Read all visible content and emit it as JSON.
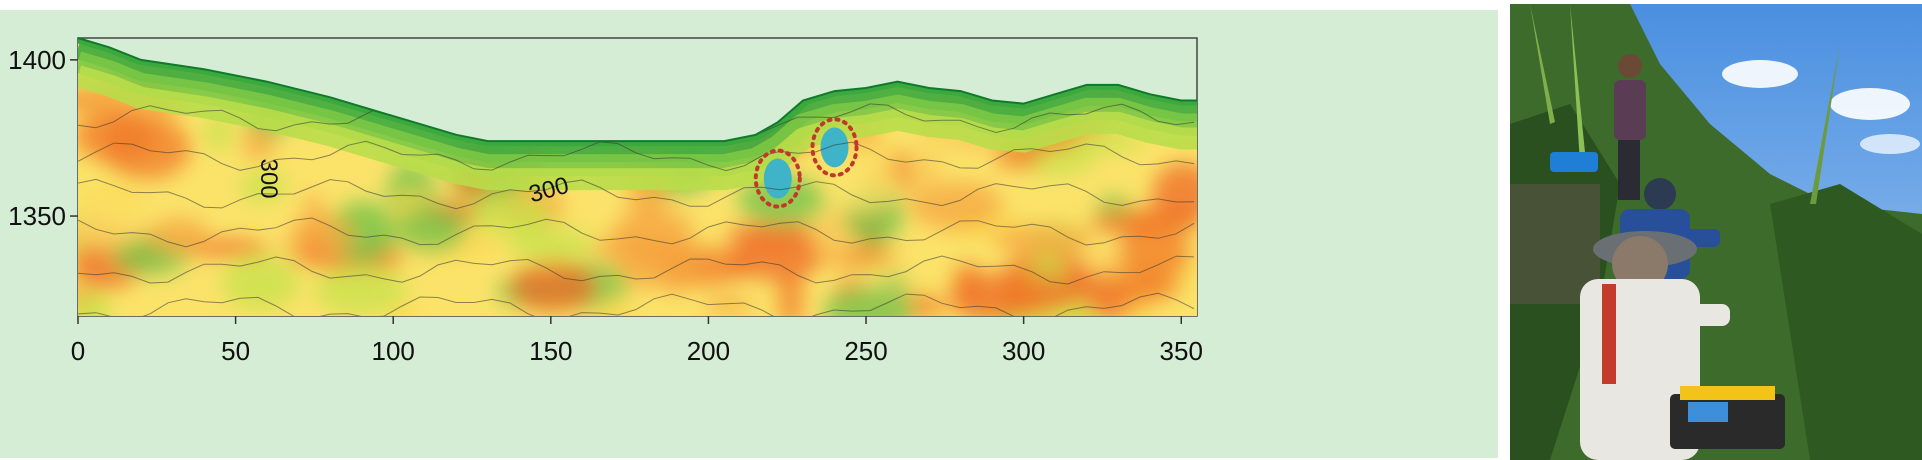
{
  "chart_data": {
    "type": "heatmap",
    "title": "",
    "xlabel": "",
    "ylabel": "",
    "xlim": [
      0,
      355
    ],
    "ylim": [
      1318,
      1407
    ],
    "x_ticks": [
      0,
      50,
      100,
      150,
      200,
      250,
      300,
      350
    ],
    "y_ticks": [
      1350,
      1400
    ],
    "surface_profile": [
      [
        0,
        1407
      ],
      [
        10,
        1404
      ],
      [
        20,
        1400
      ],
      [
        40,
        1397
      ],
      [
        60,
        1393
      ],
      [
        80,
        1388
      ],
      [
        100,
        1382
      ],
      [
        120,
        1376
      ],
      [
        130,
        1374
      ],
      [
        150,
        1374
      ],
      [
        170,
        1374
      ],
      [
        190,
        1374
      ],
      [
        205,
        1374
      ],
      [
        215,
        1376
      ],
      [
        222,
        1380
      ],
      [
        230,
        1387
      ],
      [
        240,
        1390
      ],
      [
        250,
        1391
      ],
      [
        260,
        1393
      ],
      [
        270,
        1391
      ],
      [
        280,
        1390
      ],
      [
        290,
        1387
      ],
      [
        300,
        1386
      ],
      [
        310,
        1389
      ],
      [
        320,
        1392
      ],
      [
        330,
        1392
      ],
      [
        340,
        1389
      ],
      [
        350,
        1387
      ],
      [
        355,
        1387
      ]
    ],
    "contour_labels": [
      {
        "text": "300",
        "x": 58,
        "y": 1362,
        "rotation": 90
      },
      {
        "text": "300",
        "x": 150,
        "y": 1356,
        "rotation": -15
      }
    ],
    "highlighted_anomalies": [
      {
        "x": 222,
        "y": 1362
      },
      {
        "x": 240,
        "y": 1372
      }
    ],
    "colors": {
      "panel_background": "#d5ecd5",
      "high": "#f07a2a",
      "mid": "#fbe36a",
      "low": "#1e9a3a",
      "anomaly": "#3fb4c8",
      "marker": "#c0392b"
    }
  },
  "photo": {
    "icon": "field-survey-photo"
  }
}
